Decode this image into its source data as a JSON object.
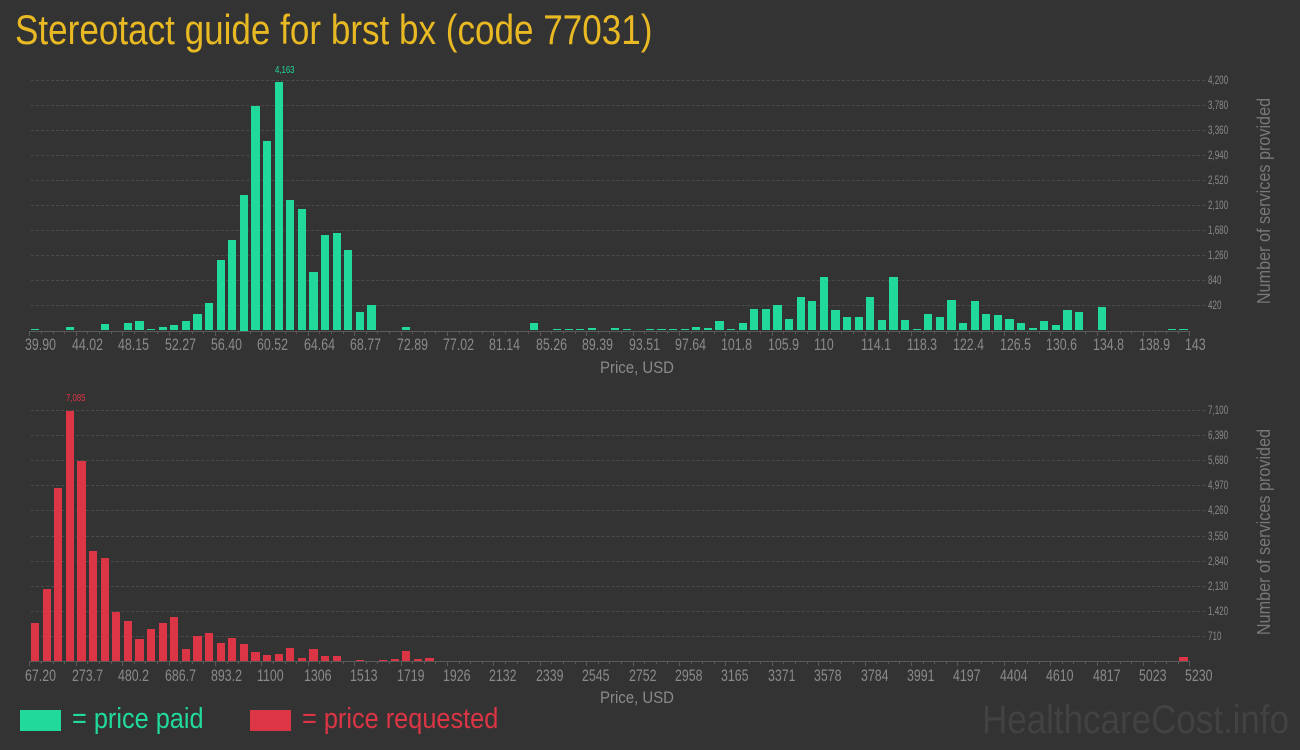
{
  "page": {
    "title": "Stereotact guide for brst bx (code 77031)"
  },
  "colors": {
    "background": "#333333",
    "title": "#e8b923",
    "price_paid": "#21d99b",
    "price_requested": "#dc3545",
    "axis_text": "#8a8a8a",
    "watermark": "#424242"
  },
  "legend": {
    "paid_label": "= price paid",
    "requested_label": "= price requested"
  },
  "watermark": "HealthcareCost.info",
  "chart_data": [
    {
      "type": "bar",
      "title": "",
      "series_name": "price paid",
      "color": "#21d99b",
      "xlabel": "Price, USD",
      "ylabel": "Number of services provided",
      "xlim": [
        39.9,
        143
      ],
      "bin_count": 100,
      "bin_width": 1.031,
      "ylim": [
        0,
        4200
      ],
      "grid": true,
      "x_tick_labels": [
        "39.90",
        "44.02",
        "48.15",
        "52.27",
        "56.40",
        "60.52",
        "64.64",
        "68.77",
        "72.89",
        "77.02",
        "81.14",
        "85.26",
        "89.39",
        "93.51",
        "97.64",
        "101.8",
        "105.9",
        "110",
        "114.1",
        "118.3",
        "122.4",
        "126.5",
        "130.6",
        "134.8",
        "138.9",
        "143"
      ],
      "y_ticks": [
        420,
        840,
        1260,
        1680,
        2100,
        2520,
        2940,
        3360,
        3780,
        4200
      ],
      "y_tick_labels": [
        "420",
        "840",
        "1,260",
        "1,680",
        "2,100",
        "2,520",
        "2,940",
        "3,360",
        "3,780",
        "4,200"
      ],
      "max_label": "4,163",
      "values": [
        30,
        0,
        0,
        63,
        0,
        0,
        115,
        0,
        132,
        165,
        17,
        63,
        86,
        165,
        282,
        465,
        1190,
        1510,
        2275,
        3770,
        3180,
        4163,
        2190,
        2040,
        985,
        1605,
        1640,
        1355,
        307,
        424,
        0,
        0,
        63,
        0,
        0,
        0,
        0,
        0,
        0,
        0,
        0,
        0,
        0,
        134,
        0,
        33,
        17,
        33,
        50,
        0,
        50,
        17,
        0,
        17,
        17,
        17,
        33,
        67,
        50,
        167,
        33,
        134,
        368,
        368,
        435,
        200,
        558,
        502,
        904,
        351,
        223,
        223,
        558,
        184,
        904,
        184,
        17,
        284,
        223,
        519,
        134,
        502,
        284,
        268,
        200,
        134,
        50,
        151,
        100,
        351,
        318,
        0,
        402,
        0,
        0,
        0,
        0,
        0,
        30,
        30
      ]
    },
    {
      "type": "bar",
      "title": "",
      "series_name": "price requested",
      "color": "#dc3545",
      "xlabel": "Price, USD",
      "ylabel": "Number of services provided",
      "xlim": [
        67.2,
        5230
      ],
      "bin_count": 100,
      "bin_width": 51.63,
      "ylim": [
        0,
        7100
      ],
      "grid": true,
      "x_tick_labels": [
        "67.20",
        "273.7",
        "480.2",
        "686.7",
        "893.2",
        "1100",
        "1306",
        "1513",
        "1719",
        "1926",
        "2132",
        "2339",
        "2545",
        "2752",
        "2958",
        "3165",
        "3371",
        "3578",
        "3784",
        "3991",
        "4197",
        "4404",
        "4610",
        "4817",
        "5023",
        "5230"
      ],
      "y_ticks": [
        710,
        1420,
        2130,
        2840,
        3550,
        4260,
        4970,
        5680,
        6390,
        7100
      ],
      "y_tick_labels": [
        "710",
        "1,420",
        "2,130",
        "2,840",
        "3,550",
        "4,260",
        "4,970",
        "5,680",
        "6,390",
        "7,100"
      ],
      "max_label": "7,085",
      "values": [
        1075,
        2037,
        4894,
        7085,
        5658,
        3112,
        2914,
        1386,
        1132,
        622,
        905,
        1075,
        1245,
        340,
        707,
        792,
        509,
        651,
        481,
        255,
        170,
        198,
        364,
        83,
        332,
        138,
        155,
        0,
        22,
        0,
        22,
        50,
        270,
        50,
        78,
        0,
        0,
        0,
        0,
        0,
        0,
        0,
        0,
        0,
        0,
        0,
        0,
        0,
        0,
        0,
        0,
        0,
        0,
        0,
        0,
        0,
        0,
        0,
        0,
        0,
        0,
        0,
        0,
        0,
        0,
        0,
        0,
        0,
        0,
        0,
        0,
        0,
        0,
        0,
        0,
        0,
        0,
        0,
        0,
        0,
        0,
        0,
        0,
        0,
        0,
        0,
        0,
        0,
        0,
        0,
        0,
        0,
        0,
        0,
        0,
        0,
        0,
        0,
        0,
        115
      ]
    }
  ]
}
